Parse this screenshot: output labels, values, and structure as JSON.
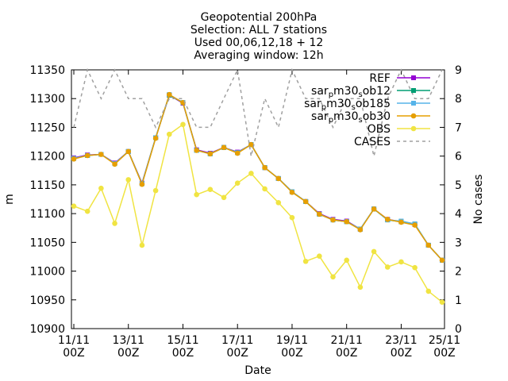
{
  "chart_data": {
    "type": "line",
    "title_lines": [
      "Geopotential 200hPa",
      "Selection: ALL      7 stations",
      "Used 00,06,12,18 + 12",
      "Averaging window: 12h"
    ],
    "xlabel": "Date",
    "ylabel": "m",
    "y2label": "No cases",
    "ylim": [
      10900,
      11350
    ],
    "y2lim": [
      0,
      9
    ],
    "y_ticks": [
      10900,
      10950,
      11000,
      11050,
      11100,
      11150,
      11200,
      11250,
      11300,
      11350
    ],
    "y2_ticks": [
      0,
      1,
      2,
      3,
      4,
      5,
      6,
      7,
      8,
      9
    ],
    "x_ticks": [
      {
        "line1": "11/11",
        "line2": "00Z"
      },
      {
        "line1": "13/11",
        "line2": "00Z"
      },
      {
        "line1": "15/11",
        "line2": "00Z"
      },
      {
        "line1": "17/11",
        "line2": "00Z"
      },
      {
        "line1": "19/11",
        "line2": "00Z"
      },
      {
        "line1": "21/11",
        "line2": "00Z"
      },
      {
        "line1": "23/11",
        "line2": "00Z"
      },
      {
        "line1": "25/11",
        "line2": "00Z"
      }
    ],
    "x": [
      "2023-11-11 00Z",
      "2023-11-11 12Z",
      "2023-11-12 00Z",
      "2023-11-12 12Z",
      "2023-11-13 00Z",
      "2023-11-13 12Z",
      "2023-11-14 00Z",
      "2023-11-14 12Z",
      "2023-11-15 00Z",
      "2023-11-15 12Z",
      "2023-11-16 00Z",
      "2023-11-16 12Z",
      "2023-11-17 00Z",
      "2023-11-17 12Z",
      "2023-11-18 00Z",
      "2023-11-18 12Z",
      "2023-11-19 00Z",
      "2023-11-19 12Z",
      "2023-11-20 00Z",
      "2023-11-20 12Z",
      "2023-11-21 00Z",
      "2023-11-21 12Z",
      "2023-11-22 00Z",
      "2023-11-22 12Z",
      "2023-11-23 00Z",
      "2023-11-23 12Z",
      "2023-11-24 00Z",
      "2023-11-24 12Z"
    ],
    "series": [
      {
        "name": "REF",
        "color": "#9400d3",
        "marker": "square",
        "axis": "y",
        "values": [
          11197,
          11202,
          11203,
          11188,
          11208,
          11153,
          11232,
          11306,
          11292,
          11211,
          11205,
          11215,
          11207,
          11220,
          11180,
          11161,
          11138,
          11121,
          11100,
          11090,
          11087,
          11073,
          11108,
          11090,
          11086,
          11081,
          11045,
          11019
        ]
      },
      {
        "name": "sar_pm30_sob12",
        "label_parts": [
          "sar",
          "p",
          "m30",
          "s",
          "ob12"
        ],
        "color": "#009e73",
        "marker": "square",
        "axis": "y",
        "values": [
          11196,
          11201,
          11203,
          11187,
          11208,
          11152,
          11232,
          11306,
          11293,
          11210,
          11204,
          11215,
          11206,
          11220,
          11180,
          11161,
          11138,
          11121,
          11099,
          11089,
          11086,
          11073,
          11108,
          11089,
          11086,
          11082,
          11045,
          11019
        ]
      },
      {
        "name": "sar_pm30_sob185",
        "label_parts": [
          "sar",
          "p",
          "m30",
          "s",
          "ob185"
        ],
        "color": "#56b4e9",
        "marker": "square",
        "axis": "y",
        "values": [
          11196,
          11201,
          11203,
          11187,
          11208,
          11152,
          11232,
          11307,
          11293,
          11210,
          11204,
          11215,
          11206,
          11220,
          11180,
          11161,
          11138,
          11121,
          11099,
          11089,
          11086,
          11073,
          11108,
          11089,
          11087,
          11082,
          11045,
          11019
        ]
      },
      {
        "name": "sar_pm30_sob30",
        "label_parts": [
          "sar",
          "p",
          "m30",
          "s",
          "ob30"
        ],
        "color": "#e69f00",
        "marker": "circle",
        "axis": "y",
        "values": [
          11195,
          11201,
          11203,
          11186,
          11208,
          11151,
          11231,
          11307,
          11293,
          11210,
          11204,
          11215,
          11205,
          11220,
          11180,
          11161,
          11137,
          11121,
          11099,
          11089,
          11086,
          11072,
          11108,
          11090,
          11085,
          11080,
          11045,
          11019
        ]
      },
      {
        "name": "OBS",
        "color": "#f0e442",
        "marker": "circle",
        "axis": "y",
        "values": [
          11113,
          11104,
          11144,
          11083,
          11159,
          11045,
          11140,
          11238,
          11255,
          11133,
          11142,
          11128,
          11153,
          11170,
          11143,
          11119,
          11093,
          11017,
          11026,
          10990,
          11019,
          10972,
          11034,
          11007,
          11016,
          11006,
          10965,
          10946
        ]
      },
      {
        "name": "CASES",
        "color": "#a0a0a0",
        "marker": "none",
        "dashed": true,
        "axis": "y2",
        "values": [
          7,
          9,
          8,
          9,
          8,
          8,
          7,
          8,
          8,
          7,
          7,
          8,
          9,
          6,
          8,
          7,
          9,
          8,
          8,
          7,
          8,
          8,
          6,
          8,
          9,
          8,
          8,
          9
        ]
      }
    ],
    "grid": false,
    "legend_position": "top-right"
  }
}
